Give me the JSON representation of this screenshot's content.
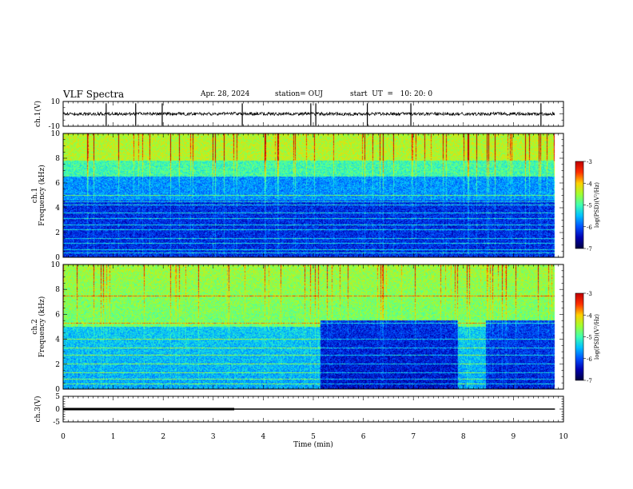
{
  "header": {
    "title": "VLF Spectra",
    "date": "Apr. 28, 2024",
    "station": "station= OUJ",
    "start": "start  UT  =   10: 20: 0"
  },
  "colors": {
    "colormap": [
      "#000040",
      "#0000b0",
      "#0050ff",
      "#00c0ff",
      "#40ffb0",
      "#a0ff30",
      "#ffd000",
      "#ff3000",
      "#c00000"
    ]
  },
  "chart_data": [
    {
      "id": "ch1-voltage",
      "type": "line",
      "ylabel": "ch.1(V)",
      "ylim": [
        -10,
        10
      ],
      "y_ticks": [
        "10",
        "-10"
      ],
      "x_range_min": [
        0,
        9.83
      ],
      "baseline": 0,
      "spikes_min": [
        0.86,
        1.45,
        1.98,
        3.58,
        4.95,
        5.05,
        6.08,
        6.95,
        9.55
      ]
    },
    {
      "id": "ch1-spectrogram",
      "type": "heatmap",
      "ylabel": "ch.1\nFrequency (kHz)",
      "ylim": [
        0,
        10
      ],
      "y_ticks": [
        "0",
        "2",
        "4",
        "6",
        "8",
        "10"
      ],
      "x_range_min": [
        0,
        9.83
      ],
      "colorbar": {
        "label": "log(PSD)(V²/Hz)",
        "range": [
          -7,
          -3
        ],
        "ticks": [
          "-3",
          "-4",
          "-5",
          "-6",
          "-7"
        ]
      },
      "lines_khz": [
        0.3,
        0.6,
        1.1,
        1.5,
        2.2,
        2.6,
        3.1,
        3.6,
        4.2,
        4.5,
        5.0
      ],
      "bands": [
        {
          "f0": 0.0,
          "f1": 4.6,
          "level": -6.2
        },
        {
          "f0": 4.6,
          "f1": 6.5,
          "level": -5.7
        },
        {
          "f0": 6.5,
          "f1": 7.8,
          "level": -5.0
        },
        {
          "f0": 7.8,
          "f1": 10.0,
          "level": -4.4
        }
      ],
      "sferics": "broadband vertical impulses throughout"
    },
    {
      "id": "ch2-spectrogram",
      "type": "heatmap",
      "ylabel": "ch.2\nFrequency (kHz)",
      "ylim": [
        0,
        10
      ],
      "y_ticks": [
        "0",
        "2",
        "4",
        "6",
        "8",
        "10"
      ],
      "x_range_min": [
        0,
        9.83
      ],
      "colorbar": {
        "label": "log(PSD)(V²/Hz)",
        "range": [
          -7,
          -3
        ],
        "ticks": [
          "-3",
          "-4",
          "-5",
          "-6",
          "-7"
        ]
      },
      "segments": [
        {
          "t0": 0.0,
          "t1": 5.15,
          "low_level": -5.6
        },
        {
          "t0": 5.15,
          "t1": 7.9,
          "low_level": -6.4
        },
        {
          "t0": 7.9,
          "t1": 8.45,
          "low_level": -5.6
        },
        {
          "t0": 8.45,
          "t1": 9.83,
          "low_level": -6.3
        }
      ],
      "lines_khz": [
        0.4,
        0.8,
        1.3,
        2.0,
        2.7,
        3.3,
        4.0,
        5.3,
        7.5
      ],
      "upper_level": -4.5
    },
    {
      "id": "ch3-voltage",
      "type": "line",
      "ylabel": "ch.3(V)",
      "ylim": [
        -5,
        5
      ],
      "y_ticks": [
        "5",
        "0",
        "-5"
      ],
      "x_range_min": [
        0,
        9.83
      ],
      "level": 0,
      "thick_segment_min": [
        0,
        3.42
      ]
    }
  ],
  "x_axis": {
    "label": "Time  (min)",
    "lim": [
      0,
      10
    ],
    "ticks": [
      "0",
      "1",
      "2",
      "3",
      "4",
      "5",
      "6",
      "7",
      "8",
      "9",
      "10"
    ]
  }
}
